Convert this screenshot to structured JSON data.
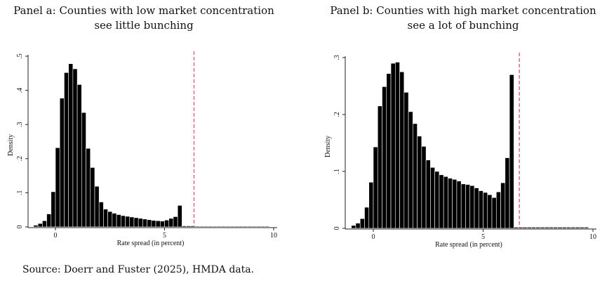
{
  "panels": [
    {
      "title_line1": "Panel a: Counties with low market concentration",
      "title_line2": "see little bunching"
    },
    {
      "title_line1": "Panel b: Counties with high market concentration",
      "title_line2": "see a lot of bunching"
    }
  ],
  "source": "Source: Doerr and Fuster (2025), HMDA data.",
  "chart_data": [
    {
      "type": "bar",
      "title": "Panel a: Counties with low market concentration see little bunching",
      "xlabel": "Rate spread (in percent)",
      "ylabel": "Density",
      "xlim": [
        -1,
        10
      ],
      "ylim": [
        0,
        0.5
      ],
      "x_ticks": [
        0,
        5,
        10
      ],
      "y_ticks": [
        0,
        0.1,
        0.2,
        0.3,
        0.4,
        0.5
      ],
      "x_tick_labels": [
        "0",
        "5",
        "10"
      ],
      "y_tick_labels": [
        "0",
        ".1",
        ".2",
        ".3",
        ".4",
        ".5"
      ],
      "bin_width": 0.2,
      "bins_start": [
        -1.0,
        -0.8,
        -0.6,
        -0.4,
        -0.2,
        0.0,
        0.2,
        0.4,
        0.6,
        0.8,
        1.0,
        1.2,
        1.4,
        1.6,
        1.8,
        2.0,
        2.2,
        2.4,
        2.6,
        2.8,
        3.0,
        3.2,
        3.4,
        3.6,
        3.8,
        4.0,
        4.2,
        4.4,
        4.6,
        4.8,
        5.0,
        5.2,
        5.4,
        5.6,
        5.8,
        6.0,
        6.2,
        6.4,
        6.6,
        6.8,
        7.0,
        7.2,
        7.4,
        7.6,
        7.8,
        8.0,
        8.2,
        8.4,
        8.6,
        8.8,
        9.0,
        9.2,
        9.4,
        9.6
      ],
      "values": [
        0.005,
        0.01,
        0.018,
        0.038,
        0.103,
        0.232,
        0.377,
        0.452,
        0.478,
        0.463,
        0.417,
        0.335,
        0.23,
        0.174,
        0.119,
        0.073,
        0.052,
        0.045,
        0.04,
        0.036,
        0.033,
        0.031,
        0.029,
        0.027,
        0.025,
        0.023,
        0.021,
        0.019,
        0.018,
        0.017,
        0.02,
        0.025,
        0.03,
        0.063,
        0.003,
        0.003,
        0.003,
        0.002,
        0.002,
        0.002,
        0.002,
        0.002,
        0.002,
        0.002,
        0.002,
        0.002,
        0.002,
        0.002,
        0.002,
        0.002,
        0.002,
        0.002,
        0.002,
        0.002
      ],
      "reference_line": {
        "x": 6.35,
        "style": "dashed",
        "color": "#e05a8a"
      },
      "bar_color": "#000000"
    },
    {
      "type": "bar",
      "title": "Panel b: Counties with high market concentration see a lot of bunching",
      "xlabel": "Rate spread (in percent)",
      "ylabel": "Density",
      "xlim": [
        -1,
        10
      ],
      "ylim": [
        0,
        0.3
      ],
      "x_ticks": [
        0,
        5,
        10
      ],
      "y_ticks": [
        0,
        0.1,
        0.2,
        0.3
      ],
      "x_tick_labels": [
        "0",
        "5",
        "10"
      ],
      "y_tick_labels": [
        "0",
        ".1",
        ".2",
        ".3"
      ],
      "bin_width": 0.2,
      "bins_start": [
        -1.0,
        -0.8,
        -0.6,
        -0.4,
        -0.2,
        0.0,
        0.2,
        0.4,
        0.6,
        0.8,
        1.0,
        1.2,
        1.4,
        1.6,
        1.8,
        2.0,
        2.2,
        2.4,
        2.6,
        2.8,
        3.0,
        3.2,
        3.4,
        3.6,
        3.8,
        4.0,
        4.2,
        4.4,
        4.6,
        4.8,
        5.0,
        5.2,
        5.4,
        5.6,
        5.8,
        6.0,
        6.2,
        6.4,
        6.6,
        6.8,
        7.0,
        7.2,
        7.4,
        7.6,
        7.8,
        8.0,
        8.2,
        8.4,
        8.6,
        8.8,
        9.0,
        9.2,
        9.4,
        9.6
      ],
      "values": [
        0.005,
        0.009,
        0.017,
        0.037,
        0.081,
        0.143,
        0.215,
        0.249,
        0.272,
        0.29,
        0.292,
        0.275,
        0.239,
        0.205,
        0.184,
        0.162,
        0.144,
        0.12,
        0.107,
        0.1,
        0.094,
        0.091,
        0.088,
        0.086,
        0.083,
        0.078,
        0.077,
        0.075,
        0.071,
        0.066,
        0.063,
        0.059,
        0.054,
        0.064,
        0.08,
        0.124,
        0.27,
        0.002,
        0.002,
        0.002,
        0.002,
        0.002,
        0.002,
        0.002,
        0.002,
        0.002,
        0.002,
        0.002,
        0.002,
        0.002,
        0.002,
        0.002,
        0.002,
        0.002
      ],
      "reference_line": {
        "x": 6.65,
        "style": "dashed",
        "color": "#e05a8a"
      },
      "bar_color": "#000000"
    }
  ]
}
